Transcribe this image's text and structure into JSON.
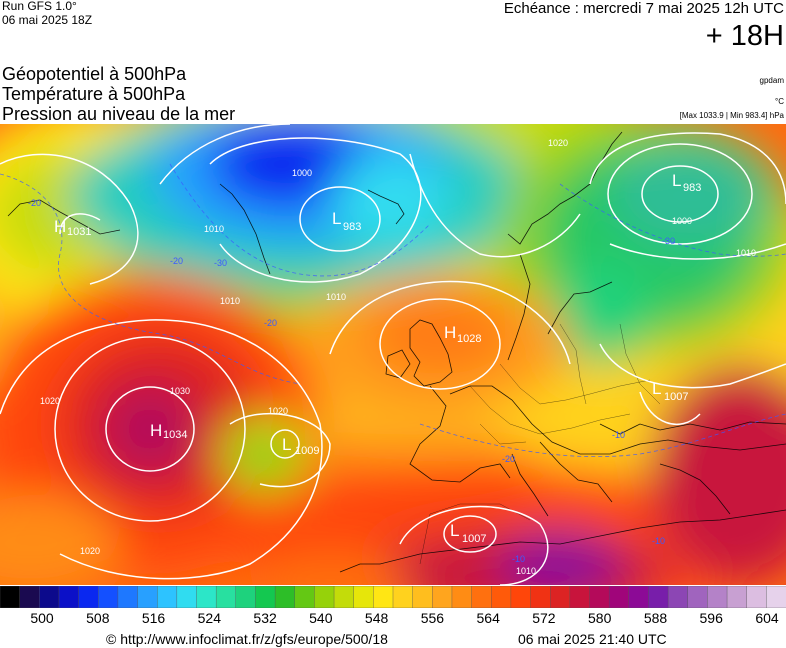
{
  "header": {
    "run_title": "Run GFS 1.0°",
    "run_date": "06 mai 2025 18Z",
    "forecast_date": "Echéance : mercredi 7 mai 2025 12h UTC",
    "lead_time": "+ 18H"
  },
  "fields": {
    "geopotential": "Géopotentiel à 500hPa",
    "temperature": "Température à 500hPa",
    "pressure": "Pression au niveau de la mer"
  },
  "units": {
    "geopotential": "gpdam",
    "temperature": "°C",
    "pressure_range": "[Max 1033.9 | Min 983.4] hPa"
  },
  "map_labels": {
    "highs": [
      {
        "symbol": "H",
        "value": "1034"
      },
      {
        "symbol": "H",
        "value": "1028"
      },
      {
        "symbol": "H",
        "value": "1031"
      }
    ],
    "lows": [
      {
        "symbol": "L",
        "value": "983"
      },
      {
        "symbol": "L",
        "value": "983"
      },
      {
        "symbol": "L",
        "value": "1009"
      },
      {
        "symbol": "L",
        "value": "1007"
      },
      {
        "symbol": "L",
        "value": "1007"
      }
    ],
    "isobars": [
      "1000",
      "1010",
      "1020",
      "1030",
      "1020",
      "1010",
      "1000",
      "1010",
      "1020",
      "1010",
      "1010",
      "1020"
    ],
    "isotherms": [
      "-20",
      "-30",
      "-20",
      "-30",
      "-20",
      "-10",
      "-20",
      "-10",
      "-10"
    ]
  },
  "colorbar": {
    "ticks": [
      "500",
      "508",
      "516",
      "524",
      "532",
      "540",
      "548",
      "556",
      "564",
      "572",
      "580",
      "588",
      "596",
      "604"
    ],
    "colors": [
      "#000000",
      "#1a0a50",
      "#0c0a8c",
      "#0b10c8",
      "#0a28f0",
      "#1450ff",
      "#1e78ff",
      "#28a0ff",
      "#2dc3ff",
      "#30dcf0",
      "#2ce6c8",
      "#28e0a0",
      "#1ed27d",
      "#14c850",
      "#2dbe28",
      "#64c814",
      "#96d20a",
      "#c3dc0a",
      "#e6e60a",
      "#ffe614",
      "#ffd21e",
      "#ffbe1e",
      "#ffa51e",
      "#ff8c14",
      "#ff700f",
      "#ff5a0a",
      "#ff460a",
      "#f03214",
      "#dc2323",
      "#c8143c",
      "#b40a5a",
      "#a0057a",
      "#8c0a96",
      "#781eaa",
      "#8c46b4",
      "#a064be",
      "#b482c8",
      "#c8a0d2",
      "#dcbee1",
      "#e6d2eb"
    ]
  },
  "footer": {
    "url": "© http://www.infoclimat.fr/z/gfs/europe/500/18",
    "stamp": "06 mai 2025 21:40 UTC"
  }
}
